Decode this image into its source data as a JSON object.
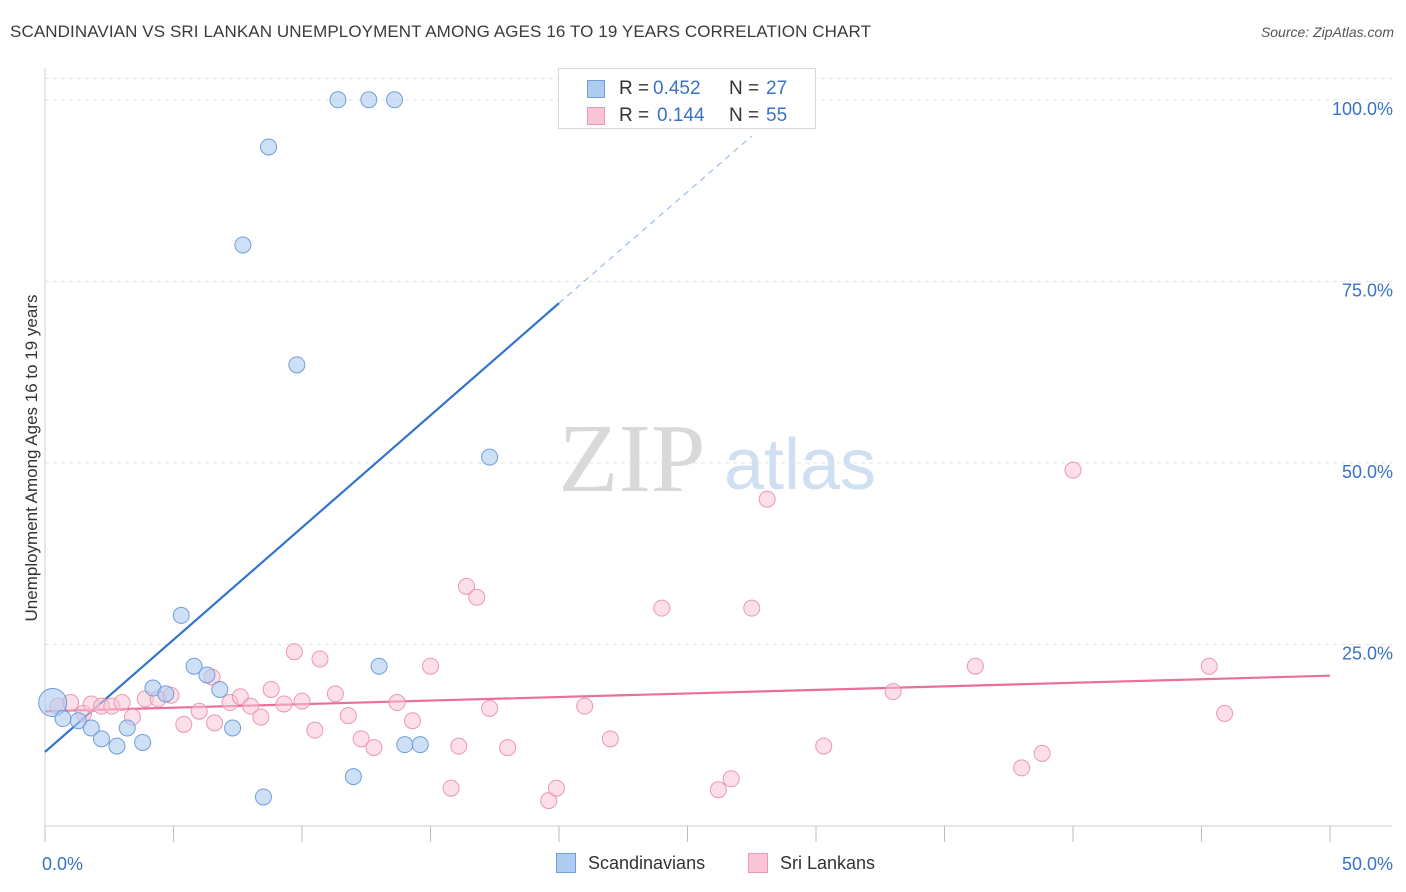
{
  "header": {
    "title": "SCANDINAVIAN VS SRI LANKAN UNEMPLOYMENT AMONG AGES 16 TO 19 YEARS CORRELATION CHART",
    "source": "Source: ZipAtlas.com"
  },
  "watermark": {
    "zip": "ZIP",
    "atlas": "atlas"
  },
  "stats": {
    "scandinavians": {
      "r_label": "R =",
      "r": "0.452",
      "n_label": "N =",
      "n": "27",
      "color": "#7aa6e0"
    },
    "srilankans": {
      "r_label": "R =",
      "r": "0.144",
      "n_label": "N =",
      "n": "55",
      "color": "#f09ab6"
    }
  },
  "legend": {
    "scandinavians": "Scandinavians",
    "srilankans": "Sri Lankans"
  },
  "colors": {
    "blue_fill": "#aecbf0",
    "blue_stroke": "#6f9ed8",
    "blue_line": "#2f74cf",
    "pink_fill": "#f9c4d4",
    "pink_stroke": "#ec97b3",
    "pink_line": "#e8709a",
    "tick_label": "#3a72c4",
    "grid": "#e3e3e3"
  },
  "chart_data": {
    "type": "scatter",
    "title": "SCANDINAVIAN VS SRI LANKAN UNEMPLOYMENT AMONG AGES 16 TO 19 YEARS CORRELATION CHART",
    "xlabel": "",
    "ylabel": "Unemployment Among Ages 16 to 19 years",
    "xlim": [
      0,
      50
    ],
    "ylim": [
      0,
      103
    ],
    "x_tick_labels": [
      {
        "value": 0,
        "label": "0.0%"
      },
      {
        "value": 50,
        "label": "50.0%"
      }
    ],
    "x_tick_positions": [
      0,
      5,
      10,
      15,
      20,
      25,
      30,
      35,
      40,
      45,
      50
    ],
    "y_ticks": [
      {
        "value": 25,
        "label": "25.0%"
      },
      {
        "value": 50,
        "label": "50.0%"
      },
      {
        "value": 75,
        "label": "75.0%"
      },
      {
        "value": 100,
        "label": "100.0%"
      }
    ],
    "series": [
      {
        "name": "Scandinavians",
        "points": [
          [
            0.3,
            17.0
          ],
          [
            0.7,
            14.8
          ],
          [
            1.3,
            14.5
          ],
          [
            1.8,
            13.5
          ],
          [
            2.2,
            12.0
          ],
          [
            2.8,
            11.0
          ],
          [
            3.2,
            13.5
          ],
          [
            3.8,
            11.5
          ],
          [
            4.2,
            19.0
          ],
          [
            4.7,
            18.2
          ],
          [
            5.3,
            29.0
          ],
          [
            5.8,
            22.0
          ],
          [
            6.3,
            20.8
          ],
          [
            6.8,
            18.8
          ],
          [
            7.3,
            13.5
          ],
          [
            7.7,
            80.0
          ],
          [
            8.5,
            4.0
          ],
          [
            8.7,
            93.5
          ],
          [
            9.8,
            63.5
          ],
          [
            11.4,
            100.0
          ],
          [
            12.0,
            6.8
          ],
          [
            12.6,
            100.0
          ],
          [
            13.0,
            22.0
          ],
          [
            13.6,
            100.0
          ],
          [
            14.0,
            11.2
          ],
          [
            14.6,
            11.2
          ],
          [
            17.3,
            50.8
          ]
        ],
        "trend": {
          "x0": 0,
          "y0": 10.2,
          "x1": 20.0,
          "y1": 72.0,
          "dashed_to_x": 27.5,
          "dashed_to_y": 95.0
        }
      },
      {
        "name": "Sri Lankans",
        "points": [
          [
            0.5,
            16.5
          ],
          [
            1.0,
            17.0
          ],
          [
            1.5,
            15.5
          ],
          [
            1.8,
            16.8
          ],
          [
            2.2,
            16.5
          ],
          [
            2.6,
            16.5
          ],
          [
            3.0,
            17.0
          ],
          [
            3.4,
            15.0
          ],
          [
            3.9,
            17.5
          ],
          [
            4.4,
            17.5
          ],
          [
            4.9,
            18.0
          ],
          [
            5.4,
            14.0
          ],
          [
            6.0,
            15.8
          ],
          [
            6.5,
            20.5
          ],
          [
            6.6,
            14.2
          ],
          [
            7.2,
            17.0
          ],
          [
            7.6,
            17.8
          ],
          [
            8.0,
            16.5
          ],
          [
            8.4,
            15.0
          ],
          [
            8.8,
            18.8
          ],
          [
            9.3,
            16.8
          ],
          [
            9.7,
            24.0
          ],
          [
            10.0,
            17.2
          ],
          [
            10.5,
            13.2
          ],
          [
            10.7,
            23.0
          ],
          [
            11.3,
            18.2
          ],
          [
            11.8,
            15.2
          ],
          [
            12.3,
            12.0
          ],
          [
            12.8,
            10.8
          ],
          [
            13.7,
            17.0
          ],
          [
            14.3,
            14.5
          ],
          [
            15.0,
            22.0
          ],
          [
            15.8,
            5.2
          ],
          [
            16.1,
            11.0
          ],
          [
            16.4,
            33.0
          ],
          [
            16.8,
            31.5
          ],
          [
            17.3,
            16.2
          ],
          [
            18.0,
            10.8
          ],
          [
            19.6,
            3.5
          ],
          [
            19.9,
            5.2
          ],
          [
            21.0,
            16.5
          ],
          [
            26.2,
            5.0
          ],
          [
            26.7,
            6.5
          ],
          [
            27.5,
            30.0
          ],
          [
            28.1,
            45.0
          ],
          [
            30.3,
            11.0
          ],
          [
            33.0,
            18.5
          ],
          [
            36.2,
            22.0
          ],
          [
            38.0,
            8.0
          ],
          [
            38.8,
            10.0
          ],
          [
            40.0,
            49.0
          ],
          [
            45.3,
            22.0
          ],
          [
            45.9,
            15.5
          ],
          [
            24.0,
            30.0
          ],
          [
            22.0,
            12.0
          ]
        ],
        "trend": {
          "x0": 0,
          "y0": 15.8,
          "x1": 50.0,
          "y1": 20.7
        }
      }
    ]
  }
}
